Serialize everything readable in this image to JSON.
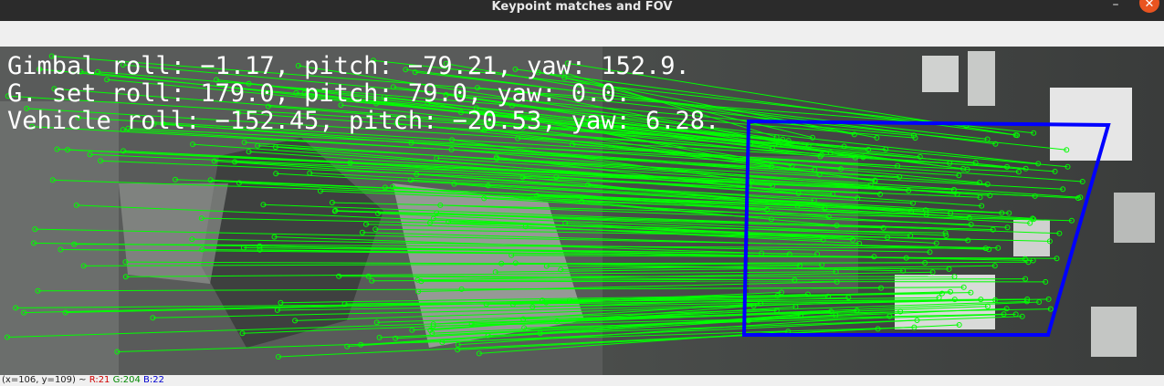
{
  "window": {
    "title": "Keypoint matches and FOV",
    "minimize_glyph": "–",
    "close_glyph": "✕"
  },
  "overlay_text": {
    "gimbal": "Gimbal roll:   −1.17, pitch:  −79.21, yaw:    152.9.",
    "gimbal_set": "G. set roll:   179.0, pitch:    79.0, yaw:     0.0.",
    "vehicle": "Vehicle roll: −152.45, pitch:  −20.53, yaw:    6.28."
  },
  "status": {
    "coords": "(x=106, y=109) ~",
    "r": "R:21",
    "g": "G:204",
    "b": "B:22"
  },
  "colors": {
    "match_lines": "#00ff00",
    "fov_polygon": "#0000ff",
    "overlay_text": "#ffffff"
  }
}
